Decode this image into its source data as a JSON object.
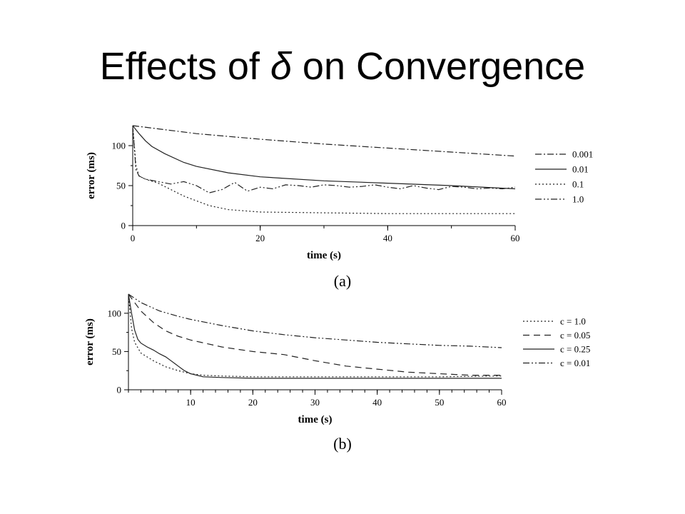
{
  "slide": {
    "title_prefix": "Effects of ",
    "title_symbol": "δ",
    "title_suffix": " on Convergence"
  },
  "chart_data": [
    {
      "type": "line",
      "caption": "(a)",
      "xlabel": "time (s)",
      "ylabel": "error (ms)",
      "xlim": [
        0,
        60
      ],
      "ylim": [
        0,
        125
      ],
      "xticks": [
        0,
        20,
        40,
        60
      ],
      "yticks": [
        0,
        50,
        100
      ],
      "legend_position": "right",
      "series": [
        {
          "name": "0.001",
          "dash": "dashdot",
          "x": [
            0,
            10,
            20,
            30,
            40,
            50,
            60
          ],
          "y": [
            125,
            115,
            108,
            102,
            97,
            92,
            87
          ]
        },
        {
          "name": "0.01",
          "dash": "solid",
          "x": [
            0,
            1,
            2,
            3,
            5,
            8,
            10,
            15,
            20,
            30,
            40,
            50,
            60
          ],
          "y": [
            125,
            115,
            106,
            99,
            90,
            79,
            74,
            66,
            61,
            56,
            53,
            50,
            46
          ]
        },
        {
          "name": "0.1",
          "dash": "dotted",
          "x": [
            0,
            0.5,
            1,
            2,
            4,
            6,
            8,
            10,
            12,
            15,
            20,
            30,
            40,
            50,
            60
          ],
          "y": [
            125,
            75,
            62,
            58,
            53,
            45,
            37,
            31,
            25,
            20,
            17,
            16,
            15,
            15,
            15
          ]
        },
        {
          "name": "1.0",
          "dash": "dashdotdot",
          "x": [
            0,
            0.5,
            1,
            2,
            4,
            6,
            8,
            10,
            12,
            14,
            16,
            18,
            20,
            22,
            24,
            26,
            28,
            30,
            32,
            34,
            36,
            38,
            40,
            42,
            44,
            46,
            48,
            50,
            52,
            54,
            56,
            58,
            60
          ],
          "y": [
            125,
            70,
            62,
            58,
            55,
            52,
            55,
            50,
            41,
            45,
            54,
            43,
            48,
            46,
            51,
            50,
            48,
            51,
            50,
            48,
            49,
            51,
            48,
            46,
            50,
            47,
            45,
            49,
            48,
            46,
            47,
            46,
            48
          ]
        }
      ]
    },
    {
      "type": "line",
      "caption": "(b)",
      "xlabel": "time (s)",
      "ylabel": "error (ms)",
      "xlim": [
        0,
        60
      ],
      "ylim": [
        0,
        125
      ],
      "xticks": [
        10,
        20,
        30,
        40,
        50,
        60
      ],
      "yticks": [
        0,
        50,
        100
      ],
      "legend_position": "right",
      "series": [
        {
          "name": "c = 1.0",
          "dash": "dotted",
          "x": [
            0,
            0.5,
            1,
            2,
            4,
            6,
            8,
            10,
            12,
            15,
            20,
            30,
            40,
            50,
            60
          ],
          "y": [
            125,
            80,
            62,
            48,
            38,
            30,
            25,
            21,
            19,
            18,
            17,
            17,
            17,
            17,
            18
          ]
        },
        {
          "name": "c = 0.05",
          "dash": "dashed",
          "x": [
            0,
            2,
            4,
            6,
            8,
            10,
            15,
            20,
            25,
            30,
            35,
            40,
            45,
            50,
            55,
            60
          ],
          "y": [
            125,
            103,
            88,
            77,
            70,
            65,
            56,
            50,
            46,
            38,
            31,
            27,
            23,
            21,
            19,
            19
          ]
        },
        {
          "name": "c = 0.25",
          "dash": "solid",
          "x": [
            0,
            0.5,
            1,
            1.5,
            2,
            3,
            4,
            5,
            6,
            7,
            8,
            9,
            10,
            12,
            15,
            20,
            30,
            40,
            50,
            60
          ],
          "y": [
            125,
            100,
            78,
            66,
            61,
            56,
            52,
            47,
            43,
            37,
            31,
            25,
            21,
            17,
            16,
            15,
            15,
            15,
            15,
            15
          ]
        },
        {
          "name": "c = 0.01",
          "dash": "dashdotdot",
          "x": [
            0,
            2,
            5,
            8,
            10,
            15,
            20,
            25,
            30,
            35,
            40,
            45,
            50,
            55,
            60
          ],
          "y": [
            125,
            114,
            103,
            96,
            92,
            84,
            77,
            72,
            68,
            65,
            62,
            60,
            58,
            57,
            55
          ]
        }
      ]
    }
  ]
}
